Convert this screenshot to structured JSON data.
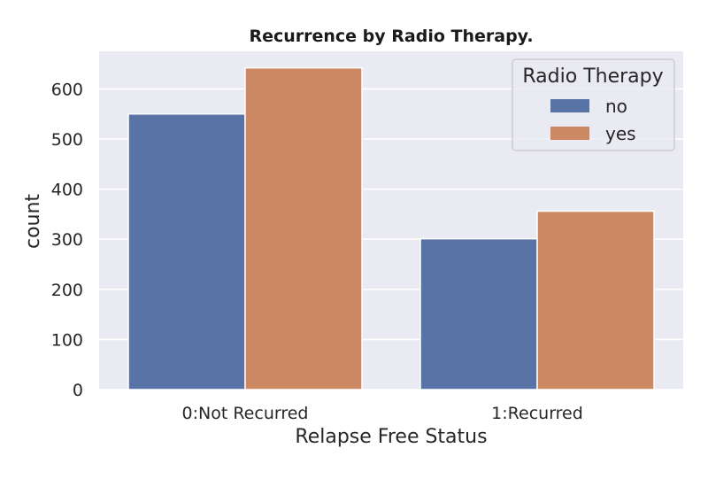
{
  "chart_data": {
    "type": "bar",
    "title": "Recurrence by Radio Therapy.",
    "xlabel": "Relapse Free Status",
    "ylabel": "count",
    "categories": [
      "0:Not Recurred",
      "1:Recurred"
    ],
    "series": [
      {
        "name": "no",
        "values": [
          550,
          301
        ],
        "color": "#5874a6"
      },
      {
        "name": "yes",
        "values": [
          642,
          356
        ],
        "color": "#cc8862"
      }
    ],
    "ylim": [
      0,
      675
    ],
    "yticks": [
      0,
      100,
      200,
      300,
      400,
      500,
      600
    ],
    "grid": true,
    "legend": {
      "title": "Radio Therapy",
      "placement": "top-right"
    },
    "background_color": "#eaeaf2"
  }
}
